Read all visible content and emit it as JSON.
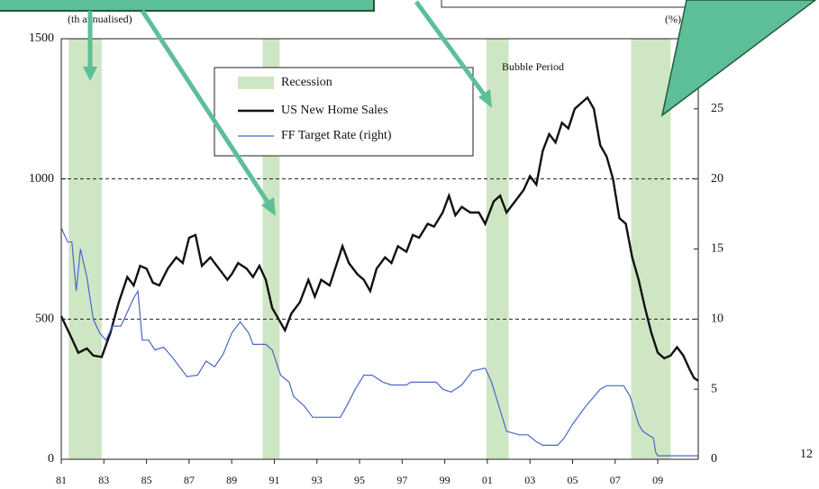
{
  "chart_data": {
    "type": "line",
    "y_unit_label": "(th annualised)",
    "y2_unit_label": "(%)",
    "annotation": "Bubble Period",
    "page_number": "12",
    "xlim": [
      1981,
      2010.9
    ],
    "xticks": [
      {
        "value": 1981,
        "label": "81"
      },
      {
        "value": 1983,
        "label": "83"
      },
      {
        "value": 1985,
        "label": "85"
      },
      {
        "value": 1987,
        "label": "87"
      },
      {
        "value": 1989,
        "label": "89"
      },
      {
        "value": 1991,
        "label": "91"
      },
      {
        "value": 1993,
        "label": "93"
      },
      {
        "value": 1995,
        "label": "95"
      },
      {
        "value": 1997,
        "label": "97"
      },
      {
        "value": 1999,
        "label": "99"
      },
      {
        "value": 2001,
        "label": "01"
      },
      {
        "value": 2003,
        "label": "03"
      },
      {
        "value": 2005,
        "label": "05"
      },
      {
        "value": 2007,
        "label": "07"
      },
      {
        "value": 2009,
        "label": "09"
      }
    ],
    "ylim": [
      0,
      1500
    ],
    "yticks": [
      0,
      500,
      1000,
      1500
    ],
    "y2lim": [
      0,
      30
    ],
    "y2ticks": [
      0,
      5,
      10,
      15,
      20,
      25
    ],
    "grid": true,
    "recession": {
      "name": "Recession",
      "color": "#cfe6c4",
      "bands": [
        [
          1981.35,
          1982.9
        ],
        [
          1990.45,
          1991.25
        ],
        [
          2000.95,
          2002.0
        ],
        [
          2007.75,
          2009.6
        ]
      ]
    },
    "series": [
      {
        "name": "US New Home Sales",
        "color": "#111111",
        "axis": "y",
        "x": [
          1981.0,
          1981.5,
          1981.8,
          1982.2,
          1982.5,
          1982.9,
          1983.3,
          1983.7,
          1984.1,
          1984.4,
          1984.7,
          1985.0,
          1985.3,
          1985.6,
          1986.0,
          1986.4,
          1986.7,
          1987.0,
          1987.3,
          1987.6,
          1988.0,
          1988.4,
          1988.8,
          1989.0,
          1989.3,
          1989.7,
          1990.0,
          1990.3,
          1990.6,
          1990.9,
          1991.2,
          1991.5,
          1991.8,
          1992.2,
          1992.6,
          1992.9,
          1993.2,
          1993.6,
          1993.9,
          1994.2,
          1994.5,
          1994.9,
          1995.2,
          1995.5,
          1995.8,
          1996.2,
          1996.5,
          1996.8,
          1997.2,
          1997.5,
          1997.8,
          1998.2,
          1998.5,
          1998.9,
          1999.2,
          1999.5,
          1999.8,
          2000.2,
          2000.6,
          2000.9,
          2001.3,
          2001.6,
          2001.9,
          2002.3,
          2002.7,
          2003.0,
          2003.3,
          2003.6,
          2003.9,
          2004.2,
          2004.5,
          2004.8,
          2005.1,
          2005.4,
          2005.7,
          2006.0,
          2006.3,
          2006.6,
          2006.9,
          2007.2,
          2007.5,
          2007.8,
          2008.1,
          2008.4,
          2008.7,
          2009.0,
          2009.3,
          2009.6,
          2009.9,
          2010.2,
          2010.5,
          2010.7,
          2010.9
        ],
        "values": [
          510,
          430,
          380,
          395,
          370,
          365,
          450,
          560,
          650,
          620,
          690,
          680,
          630,
          620,
          680,
          720,
          700,
          790,
          800,
          690,
          720,
          680,
          640,
          660,
          700,
          680,
          650,
          690,
          640,
          540,
          500,
          460,
          520,
          560,
          640,
          580,
          640,
          620,
          690,
          760,
          700,
          660,
          640,
          600,
          680,
          720,
          700,
          760,
          740,
          800,
          790,
          840,
          830,
          880,
          940,
          870,
          900,
          880,
          880,
          840,
          920,
          940,
          880,
          920,
          960,
          1010,
          980,
          1100,
          1160,
          1130,
          1200,
          1180,
          1250,
          1270,
          1290,
          1250,
          1120,
          1080,
          1000,
          860,
          840,
          720,
          640,
          540,
          450,
          380,
          360,
          370,
          400,
          370,
          320,
          290,
          280
        ]
      },
      {
        "name": "FF Target Rate (right)",
        "color": "#4a67c8",
        "axis": "y2",
        "x": [
          1981.0,
          1981.3,
          1981.5,
          1981.7,
          1981.9,
          1982.2,
          1982.5,
          1982.8,
          1983.1,
          1983.4,
          1983.8,
          1984.1,
          1984.4,
          1984.6,
          1984.8,
          1985.1,
          1985.4,
          1985.8,
          1986.2,
          1986.6,
          1986.9,
          1987.4,
          1987.8,
          1988.2,
          1988.6,
          1989.0,
          1989.4,
          1989.8,
          1990.0,
          1990.6,
          1990.9,
          1991.3,
          1991.7,
          1991.9,
          1992.4,
          1992.8,
          1993.5,
          1994.1,
          1994.4,
          1994.8,
          1995.2,
          1995.6,
          1996.1,
          1996.5,
          1997.2,
          1997.4,
          1998.6,
          1998.9,
          1999.3,
          1999.8,
          2000.3,
          2000.9,
          2001.2,
          2001.6,
          2001.9,
          2002.5,
          2002.9,
          2003.3,
          2003.6,
          2004.3,
          2004.6,
          2005.0,
          2005.6,
          2006.3,
          2006.6,
          2007.4,
          2007.7,
          2007.9,
          2008.1,
          2008.3,
          2008.8,
          2008.9,
          2009.0,
          2010.9
        ],
        "values": [
          16.5,
          15.5,
          15.5,
          12,
          15,
          13,
          10,
          9,
          8.5,
          9.5,
          9.5,
          10.5,
          11.5,
          12,
          8.5,
          8.5,
          7.8,
          8,
          7.3,
          6.5,
          5.9,
          6,
          7,
          6.6,
          7.5,
          9,
          9.8,
          9,
          8.2,
          8.2,
          7.8,
          6,
          5.5,
          4.5,
          3.8,
          3,
          3,
          3,
          3.8,
          5,
          6,
          6,
          5.5,
          5.3,
          5.3,
          5.5,
          5.5,
          5,
          4.8,
          5.3,
          6.3,
          6.5,
          5.5,
          3.5,
          2,
          1.75,
          1.75,
          1.25,
          1,
          1,
          1.5,
          2.5,
          3.75,
          5,
          5.25,
          5.25,
          4.5,
          3.5,
          2.5,
          2,
          1.5,
          0.5,
          0.25,
          0.25
        ]
      }
    ]
  }
}
